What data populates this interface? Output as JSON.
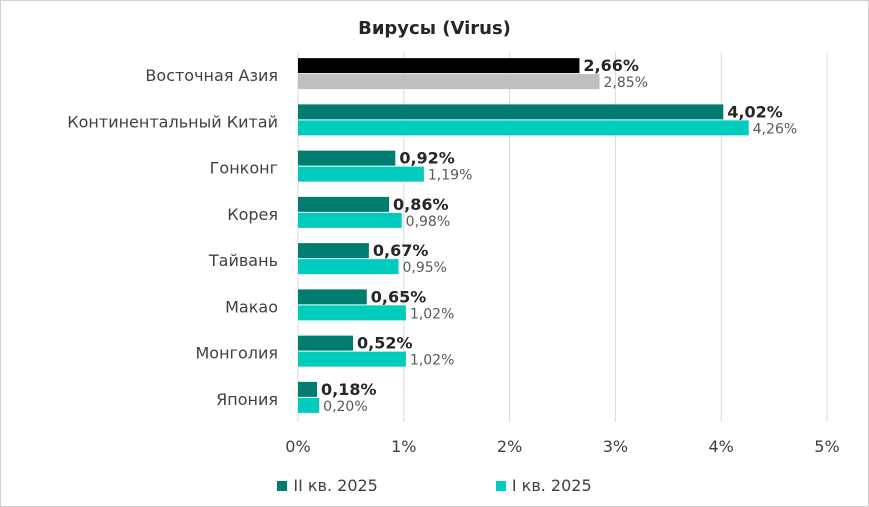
{
  "chart_data": {
    "type": "bar",
    "orientation": "horizontal",
    "title": "Вирусы (Virus)",
    "categories": [
      "Восточная Азия",
      "Континентальный Китай",
      "Гонконг",
      "Корея",
      "Тайвань",
      "Макао",
      "Монголия",
      "Япония"
    ],
    "series": [
      {
        "name": "II кв. 2025",
        "values": [
          2.66,
          4.02,
          0.92,
          0.86,
          0.67,
          0.65,
          0.52,
          0.18
        ],
        "labels": [
          "2,66%",
          "4,02%",
          "0,92%",
          "0,86%",
          "0,67%",
          "0,65%",
          "0,52%",
          "0,18%"
        ],
        "color": "#007d6e",
        "highlight_color": "#000000"
      },
      {
        "name": "I кв. 2025",
        "values": [
          2.85,
          4.26,
          1.19,
          0.98,
          0.95,
          1.02,
          1.02,
          0.2
        ],
        "labels": [
          "2,85%",
          "4,26%",
          "1,19%",
          "0,98%",
          "0,95%",
          "1,02%",
          "1,02%",
          "0,20%"
        ],
        "color": "#00ccbe",
        "highlight_color": "#bfbfbf"
      }
    ],
    "x_ticks": [
      0,
      1,
      2,
      3,
      4,
      5
    ],
    "x_tick_labels": [
      "0%",
      "1%",
      "2%",
      "3%",
      "4%",
      "5%"
    ],
    "xlim": [
      0,
      5
    ],
    "grid": "vertical",
    "legend_position": "bottom"
  }
}
